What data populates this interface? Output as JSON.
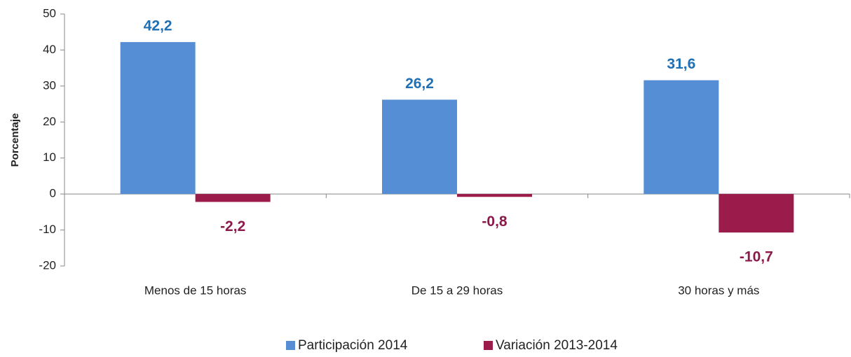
{
  "chart_data": {
    "type": "bar",
    "y_label": "Porcentaje",
    "categories": [
      "Menos de 15 horas",
      "De 15 a 29 horas",
      "30 horas y más"
    ],
    "series": [
      {
        "name": "Participación 2014",
        "color": "#558ed5",
        "label_color": "#1f6fb5",
        "values": [
          42.2,
          26.2,
          31.6
        ],
        "value_labels": [
          "42,2",
          "26,2",
          "31,6"
        ]
      },
      {
        "name": "Variación 2013-2014",
        "color": "#9b1b4a",
        "label_color": "#8b1a4a",
        "values": [
          -2.2,
          -0.8,
          -10.7
        ],
        "value_labels": [
          "-2,2",
          "-0,8",
          "-10,7"
        ]
      }
    ],
    "ylim": [
      -20,
      50
    ],
    "yticks": [
      -20,
      -10,
      0,
      10,
      20,
      30,
      40,
      50
    ],
    "grid": false,
    "legend": "bottom"
  }
}
